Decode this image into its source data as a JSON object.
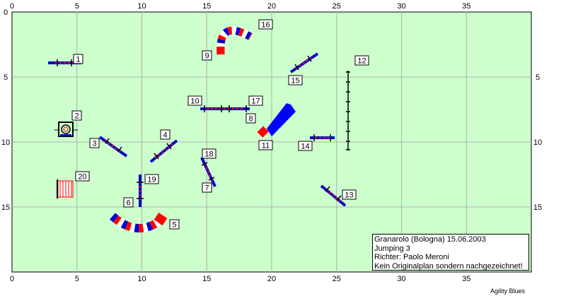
{
  "course": {
    "field_color": "#ccffcc",
    "grid_color": "#b0b0b0",
    "x_range": [
      0,
      40
    ],
    "y_range": [
      0,
      20
    ],
    "x_ticks": [
      "0",
      "5",
      "10",
      "15",
      "20",
      "25",
      "30",
      "35"
    ],
    "y_ticks_left": [
      "0",
      "5",
      "10",
      "15"
    ],
    "y_ticks_right": [
      "5",
      "10",
      "15"
    ],
    "obstacle_labels": [
      "1",
      "2",
      "3",
      "4",
      "5",
      "6",
      "7",
      "8",
      "9",
      "10",
      "11",
      "12",
      "13",
      "14",
      "15",
      "16",
      "17",
      "18",
      "19",
      "20"
    ]
  },
  "info": {
    "line1": "Granarolo (Bologna) 15.06.2003",
    "line2": "Jumping 3",
    "line3": "Richter: Paolo Meroni",
    "line4": "Kein Originalplan sondern nachgezeichnet!"
  },
  "credit": "Agility Blues"
}
